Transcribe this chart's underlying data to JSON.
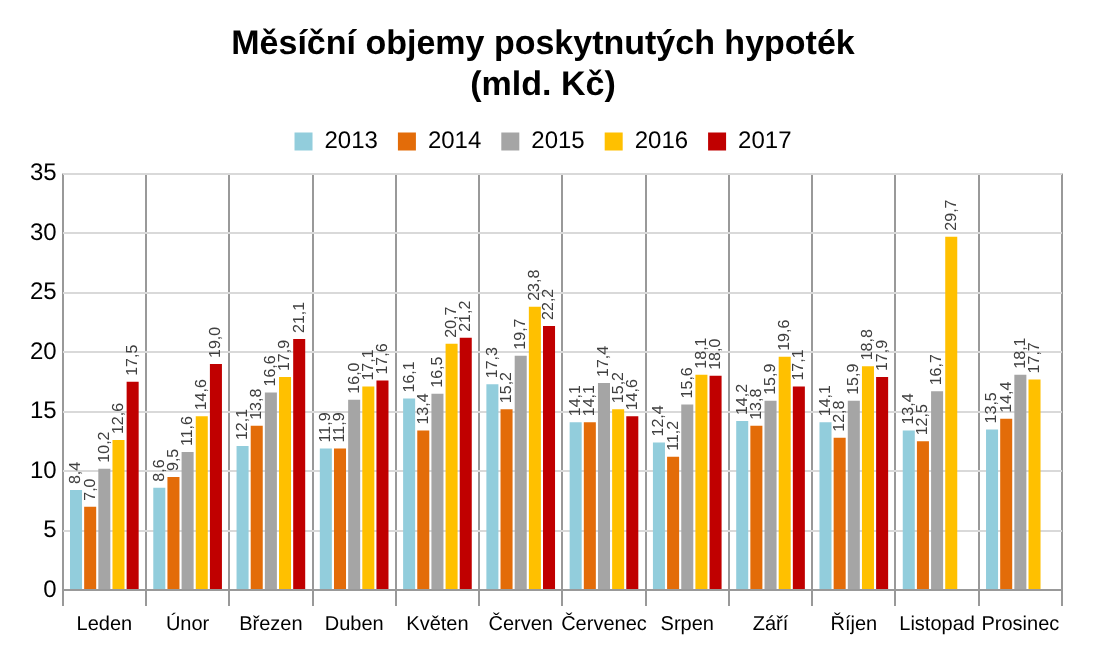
{
  "chart_data": {
    "type": "bar",
    "title": "Měsíční objemy poskytnutých hypoték",
    "subtitle": "(mld. Kč)",
    "categories": [
      "Leden",
      "Únor",
      "Březen",
      "Duben",
      "Květen",
      "Červen",
      "Červenec",
      "Srpen",
      "Září",
      "Říjen",
      "Listopad",
      "Prosinec"
    ],
    "series": [
      {
        "name": "2013",
        "color": "#92cddc",
        "values": [
          8.4,
          8.6,
          12.1,
          11.9,
          16.1,
          17.3,
          14.1,
          12.4,
          14.2,
          14.1,
          13.4,
          13.5
        ],
        "value_labels": [
          "8,4",
          "8,6",
          "12,1",
          "11,9",
          "16,1",
          "17,3",
          "14,1",
          "12,4",
          "14,2",
          "14,1",
          "13,4",
          "13,5"
        ]
      },
      {
        "name": "2014",
        "color": "#e36c09",
        "values": [
          7.0,
          9.5,
          13.8,
          11.9,
          13.4,
          15.2,
          14.1,
          11.2,
          13.8,
          12.8,
          12.5,
          14.4
        ],
        "value_labels": [
          "7,0",
          "9,5",
          "13,8",
          "11,9",
          "13,4",
          "15,2",
          "14,1",
          "11,2",
          "13,8",
          "12,8",
          "12,5",
          "14,4"
        ]
      },
      {
        "name": "2015",
        "color": "#a5a5a5",
        "values": [
          10.2,
          11.6,
          16.6,
          16.0,
          16.5,
          19.7,
          17.4,
          15.6,
          15.9,
          15.9,
          16.7,
          18.1
        ],
        "value_labels": [
          "10,2",
          "11,6",
          "16,6",
          "16,0",
          "16,5",
          "19,7",
          "17,4",
          "15,6",
          "15,9",
          "15,9",
          "16,7",
          "18,1"
        ]
      },
      {
        "name": "2016",
        "color": "#ffc000",
        "values": [
          12.6,
          14.6,
          17.9,
          17.1,
          20.7,
          23.8,
          15.2,
          18.1,
          19.6,
          18.8,
          29.7,
          17.7
        ],
        "value_labels": [
          "12,6",
          "14,6",
          "17,9",
          "17,1",
          "20,7",
          "23,8",
          "15,2",
          "18,1",
          "19,6",
          "18,8",
          "29,7",
          "17,7"
        ]
      },
      {
        "name": "2017",
        "color": "#c00000",
        "values": [
          17.5,
          19.0,
          21.1,
          17.6,
          21.2,
          22.2,
          14.6,
          18.0,
          17.1,
          17.9,
          null,
          null
        ],
        "value_labels": [
          "17,5",
          "19,0",
          "21,1",
          "17,6",
          "21,2",
          "22,2",
          "14,6",
          "18,0",
          "17,1",
          "17,9",
          null,
          null
        ]
      }
    ],
    "ylim": [
      0,
      35
    ],
    "yticks": [
      0,
      5,
      10,
      15,
      20,
      25,
      30,
      35
    ],
    "grid": true,
    "legend": "top"
  }
}
